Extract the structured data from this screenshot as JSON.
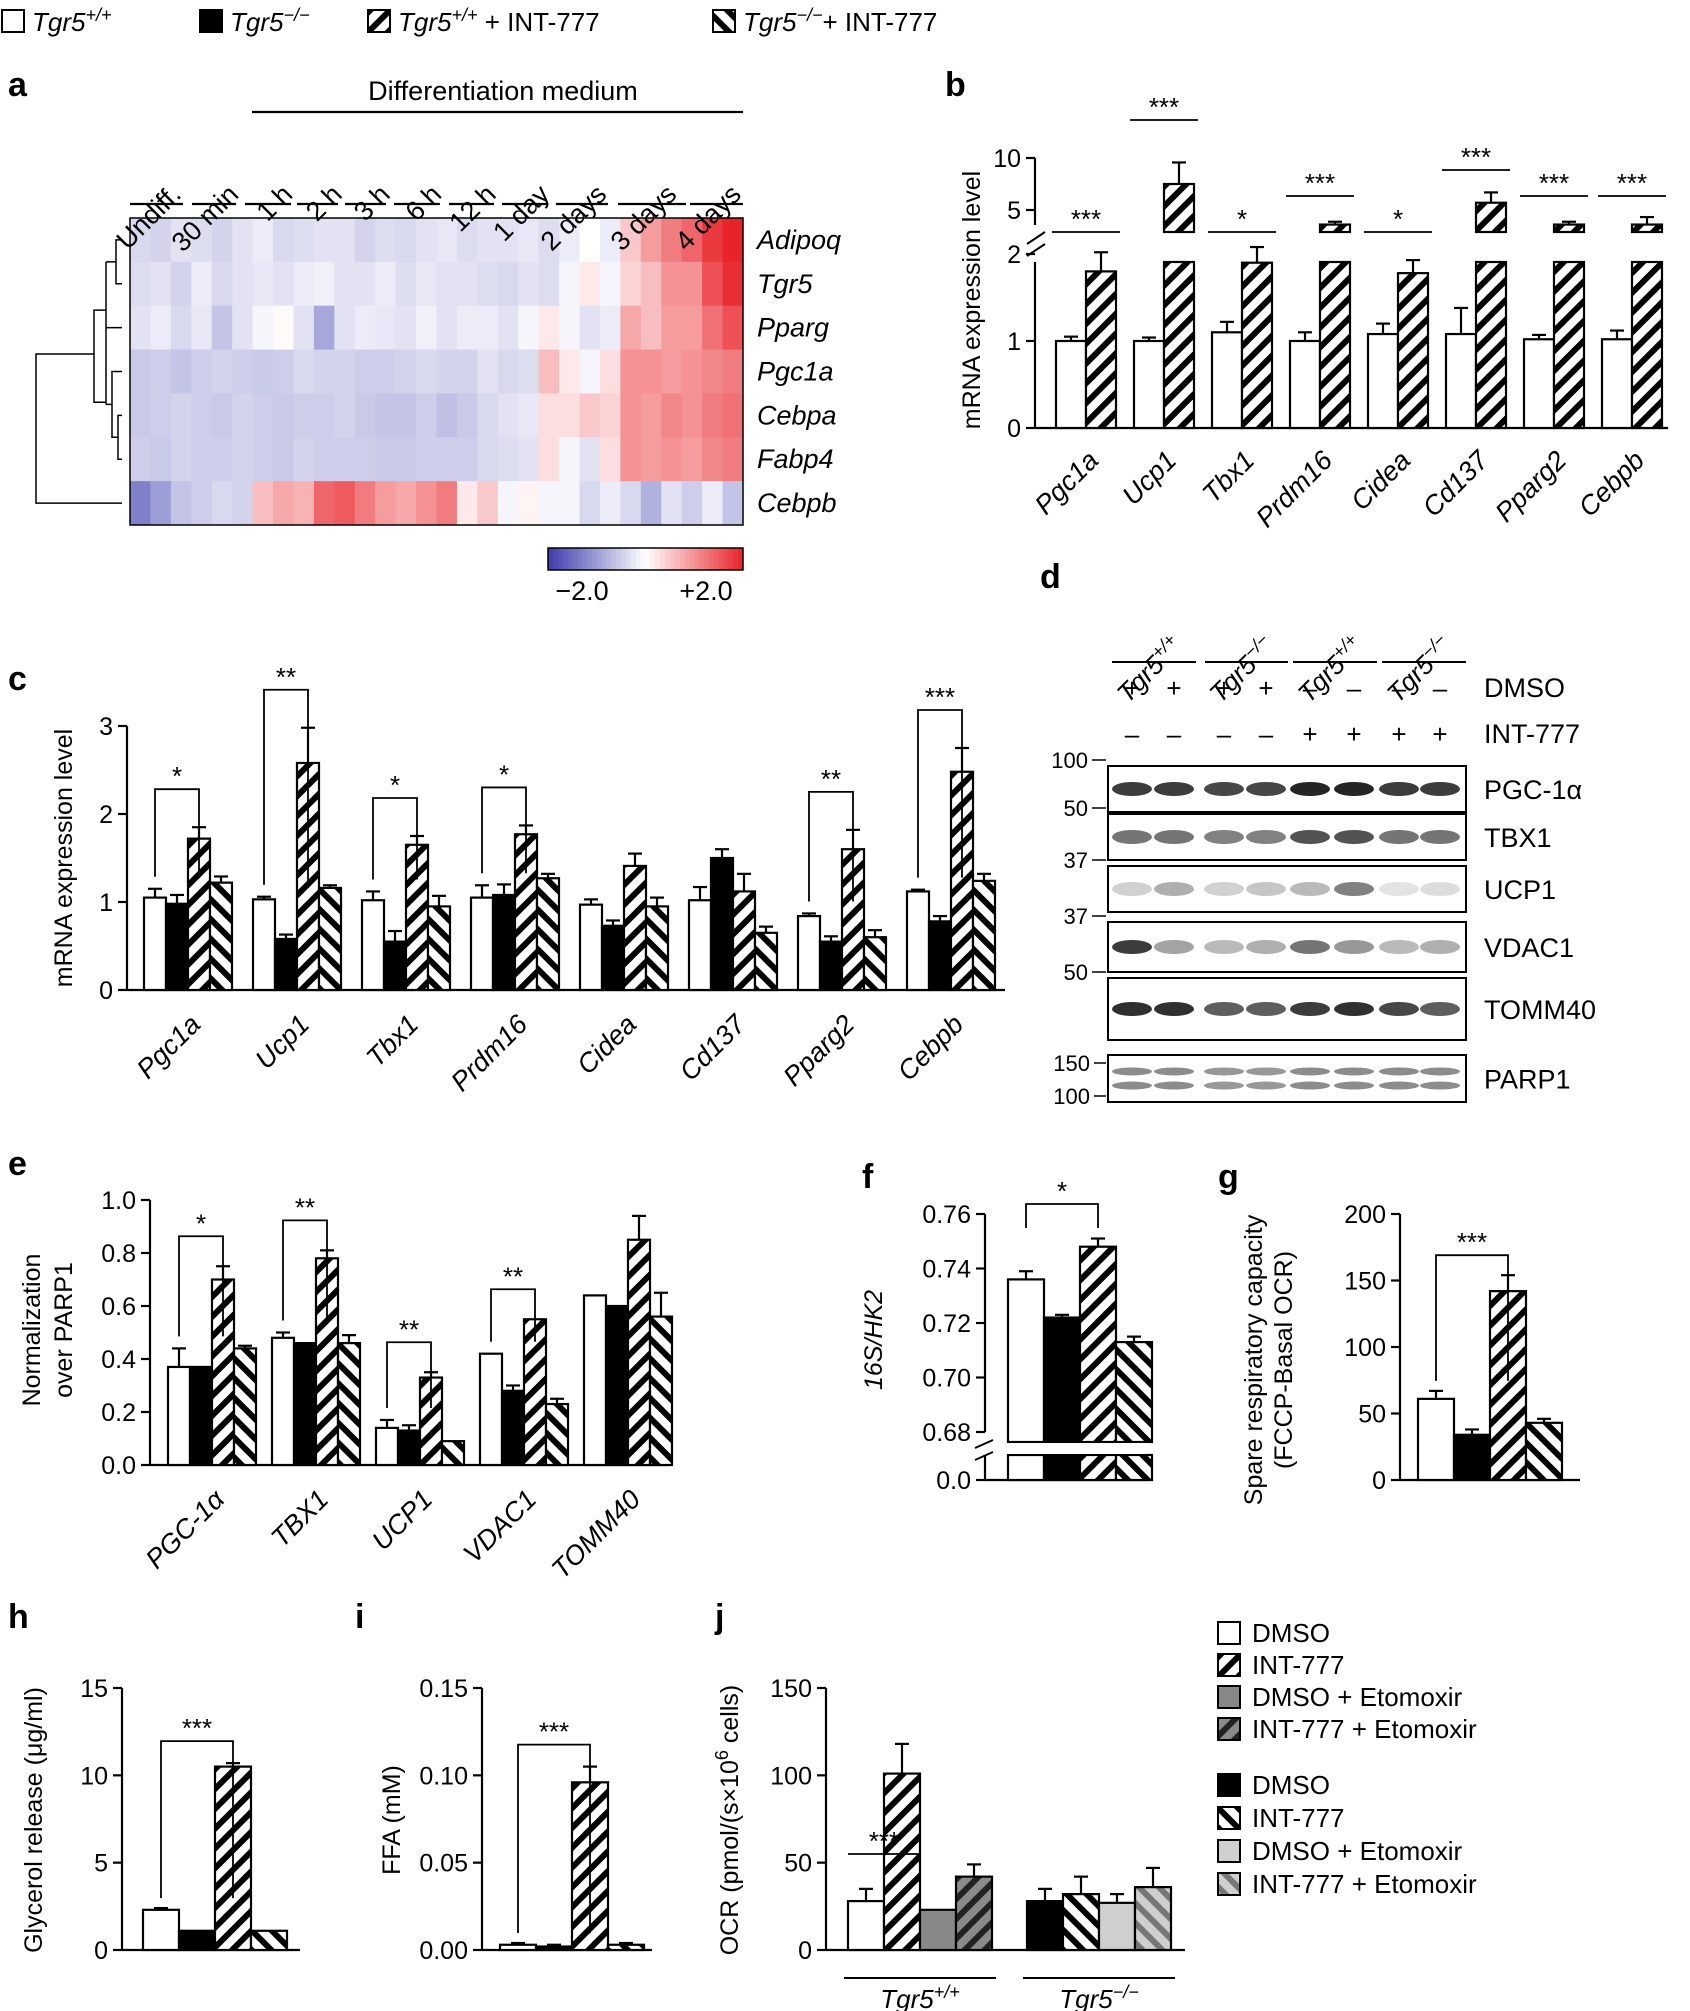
{
  "legend_top": [
    {
      "label_main": "Tgr5",
      "label_sup": "+/+",
      "label_extra": "",
      "style": "white"
    },
    {
      "label_main": "Tgr5",
      "label_sup": "−/−",
      "label_extra": "",
      "style": "black"
    },
    {
      "label_main": "Tgr5",
      "label_sup": "+/+",
      "label_extra": " + INT-777",
      "style": "hatch"
    },
    {
      "label_main": "Tgr5",
      "label_sup": "−/−",
      "label_extra": "+ INT-777",
      "style": "hatchrev"
    }
  ],
  "panels": {
    "a": "a",
    "b": "b",
    "c": "c",
    "d": "d",
    "e": "e",
    "f": "f",
    "g": "g",
    "h": "h",
    "i": "i",
    "j": "j"
  },
  "colors": {
    "low": "#3b3cab",
    "mid": "#ffffff",
    "high": "#e8242a",
    "gray1": "#888888",
    "gray2": "#5a5a5a",
    "gray3": "#cfcfcf",
    "gray4": "#9a9a9a"
  },
  "chart_data": [
    {
      "id": "a",
      "type": "heatmap",
      "header": "Differentiation medium",
      "columns": [
        "Undiff.",
        "30 min",
        "1 h",
        "2 h",
        "3 h",
        "6 h",
        "12 h",
        "1 day",
        "2 days",
        "3 days",
        "4 days"
      ],
      "rows": [
        "Adipoq",
        "Tgr5",
        "Pparg",
        "Pgc1a",
        "Cebpa",
        "Fabp4",
        "Cebpb"
      ],
      "values": [
        [
          -0.4,
          -0.45,
          -0.3,
          -0.35,
          -0.45,
          -0.3,
          -0.2,
          -0.4,
          -0.35,
          -0.3,
          -0.3,
          -0.45,
          -0.35,
          -0.4,
          -0.3,
          -0.25,
          -0.35,
          -0.3,
          -0.3,
          -0.25,
          -0.35,
          -0.2,
          0.0,
          -0.2,
          0.5,
          0.9,
          1.2,
          1.4,
          1.8,
          2.0
        ],
        [
          -0.35,
          -0.3,
          -0.45,
          -0.2,
          -0.4,
          -0.3,
          -0.25,
          -0.3,
          -0.2,
          -0.15,
          -0.3,
          -0.3,
          -0.2,
          -0.35,
          -0.25,
          -0.3,
          -0.3,
          -0.35,
          -0.4,
          -0.3,
          -0.35,
          -0.1,
          0.2,
          -0.1,
          0.4,
          0.6,
          1.0,
          1.0,
          1.6,
          1.9
        ],
        [
          -0.3,
          -0.2,
          -0.4,
          -0.25,
          -0.6,
          -0.3,
          -0.1,
          0.05,
          -0.3,
          -0.9,
          -0.3,
          -0.2,
          -0.25,
          -0.3,
          -0.15,
          -0.3,
          -0.2,
          -0.2,
          -0.3,
          -0.1,
          0.2,
          -0.1,
          -0.3,
          -0.2,
          0.8,
          0.6,
          0.9,
          0.9,
          1.3,
          1.6
        ],
        [
          -0.55,
          -0.5,
          -0.6,
          -0.5,
          -0.45,
          -0.5,
          -0.55,
          -0.5,
          -0.4,
          -0.45,
          -0.45,
          -0.5,
          -0.5,
          -0.45,
          -0.4,
          -0.45,
          -0.45,
          -0.3,
          -0.4,
          -0.35,
          0.6,
          0.2,
          -0.1,
          0.3,
          1.0,
          1.0,
          0.9,
          1.0,
          1.1,
          1.2
        ],
        [
          -0.55,
          -0.5,
          -0.45,
          -0.5,
          -0.55,
          -0.45,
          -0.5,
          -0.55,
          -0.5,
          -0.5,
          -0.45,
          -0.55,
          -0.6,
          -0.6,
          -0.5,
          -0.65,
          -0.55,
          -0.4,
          -0.3,
          -0.25,
          0.3,
          0.3,
          0.5,
          0.4,
          1.0,
          0.9,
          1.1,
          1.0,
          1.2,
          1.3
        ],
        [
          -0.5,
          -0.55,
          -0.45,
          -0.5,
          -0.5,
          -0.45,
          -0.5,
          -0.55,
          -0.45,
          -0.5,
          -0.5,
          -0.5,
          -0.55,
          -0.55,
          -0.5,
          -0.5,
          -0.5,
          -0.4,
          -0.35,
          -0.3,
          0.3,
          -0.1,
          -0.3,
          0.3,
          1.0,
          0.9,
          1.0,
          0.9,
          1.1,
          1.2
        ],
        [
          -1.3,
          -1.0,
          -0.6,
          -0.5,
          -0.4,
          -0.45,
          0.6,
          0.8,
          0.7,
          1.4,
          1.5,
          1.2,
          0.9,
          0.8,
          1.0,
          1.2,
          0.2,
          0.5,
          -0.1,
          0.1,
          -0.1,
          -0.1,
          -0.4,
          -0.2,
          -0.4,
          -0.8,
          -0.3,
          -0.5,
          -0.2,
          -0.6
        ]
      ],
      "colorbar": {
        "min_label": "−2.0",
        "max_label": "+2.0",
        "min": -2.0,
        "max": 2.0
      }
    },
    {
      "id": "b",
      "type": "bar",
      "ylabel": "mRNA expression level",
      "categories": [
        "Pgc1a",
        "Ucp1",
        "Tbx1",
        "Prdm16",
        "Cidea",
        "Cd137",
        "Pparg2",
        "Cebpb"
      ],
      "series": [
        {
          "name": "Tgr5+/+",
          "style": "white",
          "values": [
            1.0,
            1.0,
            1.1,
            1.0,
            1.08,
            1.08,
            1.02,
            1.02
          ],
          "errors": [
            0.05,
            0.04,
            0.12,
            0.1,
            0.12,
            0.3,
            0.05,
            0.1
          ]
        },
        {
          "name": "Tgr5+/+ + INT-777",
          "style": "hatch",
          "values": [
            1.8,
            7.5,
            1.9,
            3.2,
            1.78,
            5.7,
            3.2,
            3.2
          ],
          "errors": [
            0.22,
            2.3,
            0.18,
            0.3,
            0.15,
            1.1,
            0.3,
            0.8
          ]
        }
      ],
      "yticks_low": [
        "0",
        "1",
        "2"
      ],
      "yticks_high": [
        "5",
        "10"
      ],
      "significance": [
        "***",
        "***",
        "*",
        "***",
        "*",
        "***",
        "***",
        "***"
      ]
    },
    {
      "id": "c",
      "type": "bar",
      "ylabel": "mRNA expression level",
      "categories": [
        "Pgc1a",
        "Ucp1",
        "Tbx1",
        "Prdm16",
        "Cidea",
        "Cd137",
        "Pparg2",
        "Cebpb"
      ],
      "ylim": [
        0,
        3
      ],
      "yticks": [
        "0",
        "1",
        "2",
        "3"
      ],
      "series": [
        {
          "name": "Tgr5+/+",
          "style": "white",
          "values": [
            1.05,
            1.03,
            1.02,
            1.05,
            0.97,
            1.02,
            0.84,
            1.12
          ],
          "errors": [
            0.1,
            0.03,
            0.1,
            0.14,
            0.06,
            0.15,
            0.03,
            0.02
          ]
        },
        {
          "name": "Tgr5−/−",
          "style": "black",
          "values": [
            0.98,
            0.58,
            0.55,
            1.08,
            0.73,
            1.5,
            0.55,
            0.78
          ],
          "errors": [
            0.1,
            0.05,
            0.12,
            0.12,
            0.06,
            0.1,
            0.06,
            0.06
          ]
        },
        {
          "name": "Tgr5+/+ + INT-777",
          "style": "hatch",
          "values": [
            1.72,
            2.58,
            1.65,
            1.77,
            1.41,
            1.12,
            1.6,
            2.48
          ],
          "errors": [
            0.13,
            0.4,
            0.1,
            0.1,
            0.14,
            0.2,
            0.22,
            0.27
          ]
        },
        {
          "name": "Tgr5−/− + INT-777",
          "style": "hatchrev",
          "values": [
            1.22,
            1.16,
            0.95,
            1.27,
            0.95,
            0.65,
            0.6,
            1.24
          ],
          "errors": [
            0.07,
            0.03,
            0.12,
            0.05,
            0.1,
            0.07,
            0.08,
            0.08
          ]
        }
      ],
      "significance": [
        "*",
        "**",
        "*",
        "*",
        "",
        "",
        "**",
        "***"
      ]
    },
    {
      "id": "d",
      "type": "table",
      "genotype_labels": [
        "Tgr5+/+",
        "Tgr5−/−",
        "Tgr5+/+",
        "Tgr5−/−"
      ],
      "genotype_main": "Tgr5",
      "genotype_sups": [
        "+/+",
        "−/−",
        "+/+",
        "−/−"
      ],
      "treatments": [
        {
          "name": "DMSO",
          "marks": [
            "+",
            "+",
            "+",
            "+",
            "–",
            "–",
            "–",
            "–"
          ]
        },
        {
          "name": "INT-777",
          "marks": [
            "–",
            "–",
            "–",
            "–",
            "+",
            "+",
            "+",
            "+"
          ]
        }
      ],
      "blots": [
        {
          "protein": "PGC-1α",
          "markers": [
            "100"
          ],
          "intensity": [
            0.85,
            0.85,
            0.8,
            0.8,
            0.95,
            0.95,
            0.85,
            0.85
          ]
        },
        {
          "protein": "TBX1",
          "markers": [
            "50"
          ],
          "intensity": [
            0.6,
            0.6,
            0.55,
            0.55,
            0.75,
            0.75,
            0.6,
            0.6
          ]
        },
        {
          "protein": "UCP1",
          "markers": [
            "37"
          ],
          "intensity": [
            0.2,
            0.35,
            0.2,
            0.25,
            0.3,
            0.55,
            0.12,
            0.15
          ]
        },
        {
          "protein": "VDAC1",
          "markers": [
            "37"
          ],
          "intensity": [
            0.85,
            0.4,
            0.3,
            0.35,
            0.6,
            0.45,
            0.3,
            0.35
          ]
        },
        {
          "protein": "TOMM40",
          "markers": [
            "50"
          ],
          "intensity": [
            0.9,
            0.9,
            0.7,
            0.7,
            0.85,
            0.9,
            0.8,
            0.7
          ]
        },
        {
          "protein": "PARP1",
          "markers": [
            "150",
            "100"
          ],
          "intensity": [
            0.5,
            0.5,
            0.45,
            0.45,
            0.5,
            0.5,
            0.5,
            0.5
          ]
        }
      ]
    },
    {
      "id": "e",
      "type": "bar",
      "ylabel": "Normalization over PARP1",
      "ylabel_line1": "Normalization",
      "ylabel_line2": "over PARP1",
      "categories": [
        "PGC-1α",
        "TBX1",
        "UCP1",
        "VDAC1",
        "TOMM40"
      ],
      "ylim": [
        0,
        1.0
      ],
      "yticks": [
        "0.0",
        "0.2",
        "0.4",
        "0.6",
        "0.8",
        "1.0"
      ],
      "series": [
        {
          "name": "Tgr5+/+",
          "style": "white",
          "values": [
            0.37,
            0.48,
            0.14,
            0.42,
            0.64
          ],
          "errors": [
            0.07,
            0.02,
            0.03,
            0.0,
            0.0
          ]
        },
        {
          "name": "Tgr5−/−",
          "style": "black",
          "values": [
            0.37,
            0.46,
            0.13,
            0.28,
            0.6
          ],
          "errors": [
            0.0,
            0.0,
            0.02,
            0.02,
            0.0
          ]
        },
        {
          "name": "Tgr5+/+ + INT-777",
          "style": "hatch",
          "values": [
            0.7,
            0.78,
            0.33,
            0.55,
            0.85
          ],
          "errors": [
            0.05,
            0.03,
            0.02,
            0.0,
            0.09
          ]
        },
        {
          "name": "Tgr5−/− + INT-777",
          "style": "hatchrev",
          "values": [
            0.44,
            0.46,
            0.09,
            0.23,
            0.56
          ],
          "errors": [
            0.01,
            0.03,
            0.0,
            0.02,
            0.09
          ]
        }
      ],
      "significance": [
        "*",
        "**",
        "**",
        "**",
        ""
      ]
    },
    {
      "id": "f",
      "type": "bar",
      "ylabel": "16S/HK2",
      "ylim": [
        0.68,
        0.76
      ],
      "yticks": [
        "0.68",
        "0.70",
        "0.72",
        "0.74",
        "0.76"
      ],
      "ybreak_tick": "0.0",
      "series_values": [
        0.736,
        0.722,
        0.748,
        0.713
      ],
      "errors": [
        0.003,
        0.001,
        0.003,
        0.002
      ],
      "styles": [
        "white",
        "black",
        "hatch",
        "hatchrev"
      ],
      "significance": "*"
    },
    {
      "id": "g",
      "type": "bar",
      "ylabel_line1": "Spare respiratory capacity",
      "ylabel_line2": "(FCCP-Basal OCR)",
      "ylim": [
        0,
        200
      ],
      "yticks": [
        "0",
        "50",
        "100",
        "150",
        "200"
      ],
      "series_values": [
        61,
        34,
        142,
        43
      ],
      "errors": [
        6,
        4,
        12,
        3
      ],
      "styles": [
        "white",
        "black",
        "hatch",
        "hatchrev"
      ],
      "significance": "***"
    },
    {
      "id": "h",
      "type": "bar",
      "ylabel": "Glycerol release (μg/ml)",
      "ylim": [
        0,
        15
      ],
      "yticks": [
        "0",
        "5",
        "10",
        "15"
      ],
      "series_values": [
        2.3,
        1.1,
        10.5,
        1.1
      ],
      "errors": [
        0.1,
        0.0,
        0.2,
        0.0
      ],
      "styles": [
        "white",
        "black",
        "hatch",
        "hatchrev"
      ],
      "significance": "***"
    },
    {
      "id": "i",
      "type": "bar",
      "ylabel": "FFA (mM)",
      "ylim": [
        0,
        0.15
      ],
      "yticks": [
        "0.00",
        "0.05",
        "0.10",
        "0.15"
      ],
      "series_values": [
        0.003,
        0.002,
        0.096,
        0.003
      ],
      "errors": [
        0.001,
        0.001,
        0.009,
        0.001
      ],
      "styles": [
        "white",
        "black",
        "hatch",
        "hatchrev"
      ],
      "significance": "***"
    },
    {
      "id": "j",
      "type": "bar",
      "ylabel_main": "OCR (pmol/(s×10",
      "ylabel_sup": "6",
      "ylabel_end": " cells)",
      "ylim": [
        0,
        150
      ],
      "yticks": [
        "0",
        "50",
        "100",
        "150"
      ],
      "groups": [
        {
          "genotype_main": "Tgr5",
          "genotype_sup": "+/+",
          "values": [
            28,
            101,
            23,
            42
          ],
          "errors": [
            7,
            17,
            0,
            7
          ],
          "styles": [
            "white",
            "hatch",
            "gray_dark",
            "hatch_gray"
          ]
        },
        {
          "genotype_main": "Tgr5",
          "genotype_sup": "−/−",
          "values": [
            28,
            32,
            27,
            36
          ],
          "errors": [
            7,
            10,
            5,
            11
          ],
          "styles": [
            "black",
            "hatchrev",
            "gray_light",
            "hatchrev_gray"
          ]
        }
      ],
      "significance": "***",
      "legend": [
        {
          "label": "DMSO",
          "style": "white"
        },
        {
          "label": "INT-777",
          "style": "hatch"
        },
        {
          "label": "DMSO + Etomoxir",
          "style": "gray_dark"
        },
        {
          "label": "INT-777 + Etomoxir",
          "style": "hatch_gray"
        },
        {
          "label": "DMSO",
          "style": "black"
        },
        {
          "label": "INT-777",
          "style": "hatchrev"
        },
        {
          "label": "DMSO + Etomoxir",
          "style": "gray_light"
        },
        {
          "label": "INT-777 + Etomoxir",
          "style": "hatchrev_gray"
        }
      ]
    }
  ]
}
